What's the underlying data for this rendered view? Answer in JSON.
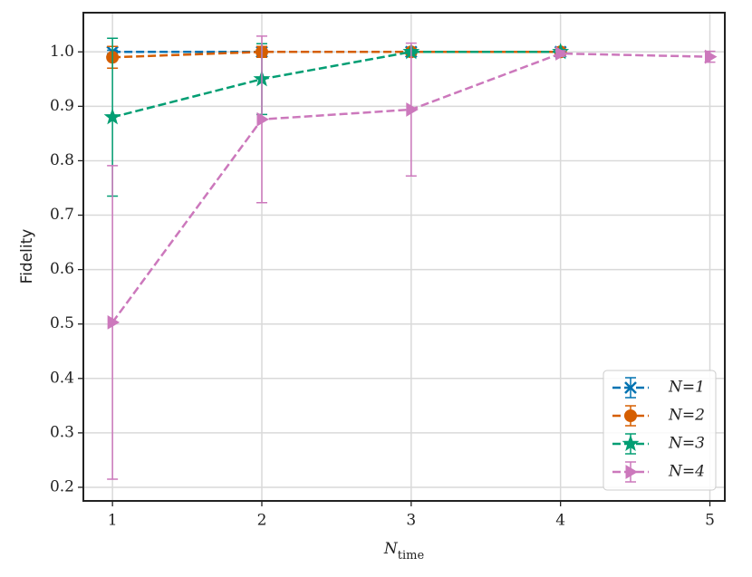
{
  "chart_data": {
    "type": "errorbar-line",
    "xlabel": "N",
    "xlabel_subscript": "time",
    "ylabel": "Fidelity",
    "xlim": [
      0.805,
      5.1
    ],
    "ylim": [
      0.175,
      1.072
    ],
    "xticks": [
      1,
      2,
      3,
      4,
      5
    ],
    "yticks": [
      0.2,
      0.3,
      0.4,
      0.5,
      0.6,
      0.7,
      0.8,
      0.9,
      {
        "value": 1,
        "label": "1.0"
      }
    ],
    "grid": true,
    "legend": "lower right",
    "series": [
      {
        "name": "N=1",
        "color": "#0173b2",
        "marker": "x",
        "x": [
          1,
          2,
          3,
          4
        ],
        "values": [
          1.0,
          1.0,
          1.0,
          1.0
        ],
        "errors": [
          0.003,
          0.003,
          0.002,
          0.001
        ]
      },
      {
        "name": "N=2",
        "color": "#d55e00",
        "marker": "circle",
        "x": [
          1,
          2,
          3,
          4
        ],
        "values": [
          0.99,
          1.0,
          1.0,
          1.0
        ],
        "errors": [
          0.02,
          0.01,
          0.002,
          0.001
        ]
      },
      {
        "name": "N=3",
        "color": "#029e73",
        "marker": "star",
        "x": [
          1,
          2,
          3,
          4
        ],
        "values": [
          0.88,
          0.95,
          1.0,
          1.0
        ],
        "errors": [
          0.145,
          0.065,
          0.003,
          0.002
        ]
      },
      {
        "name": "N=4",
        "color": "#cc78bc",
        "marker": "triangle-right",
        "x": [
          1,
          2,
          3,
          4,
          5
        ],
        "values": [
          0.503,
          0.876,
          0.894,
          0.997,
          0.991
        ],
        "errors": [
          0.288,
          0.153,
          0.122,
          0.005,
          0.01
        ]
      }
    ]
  }
}
